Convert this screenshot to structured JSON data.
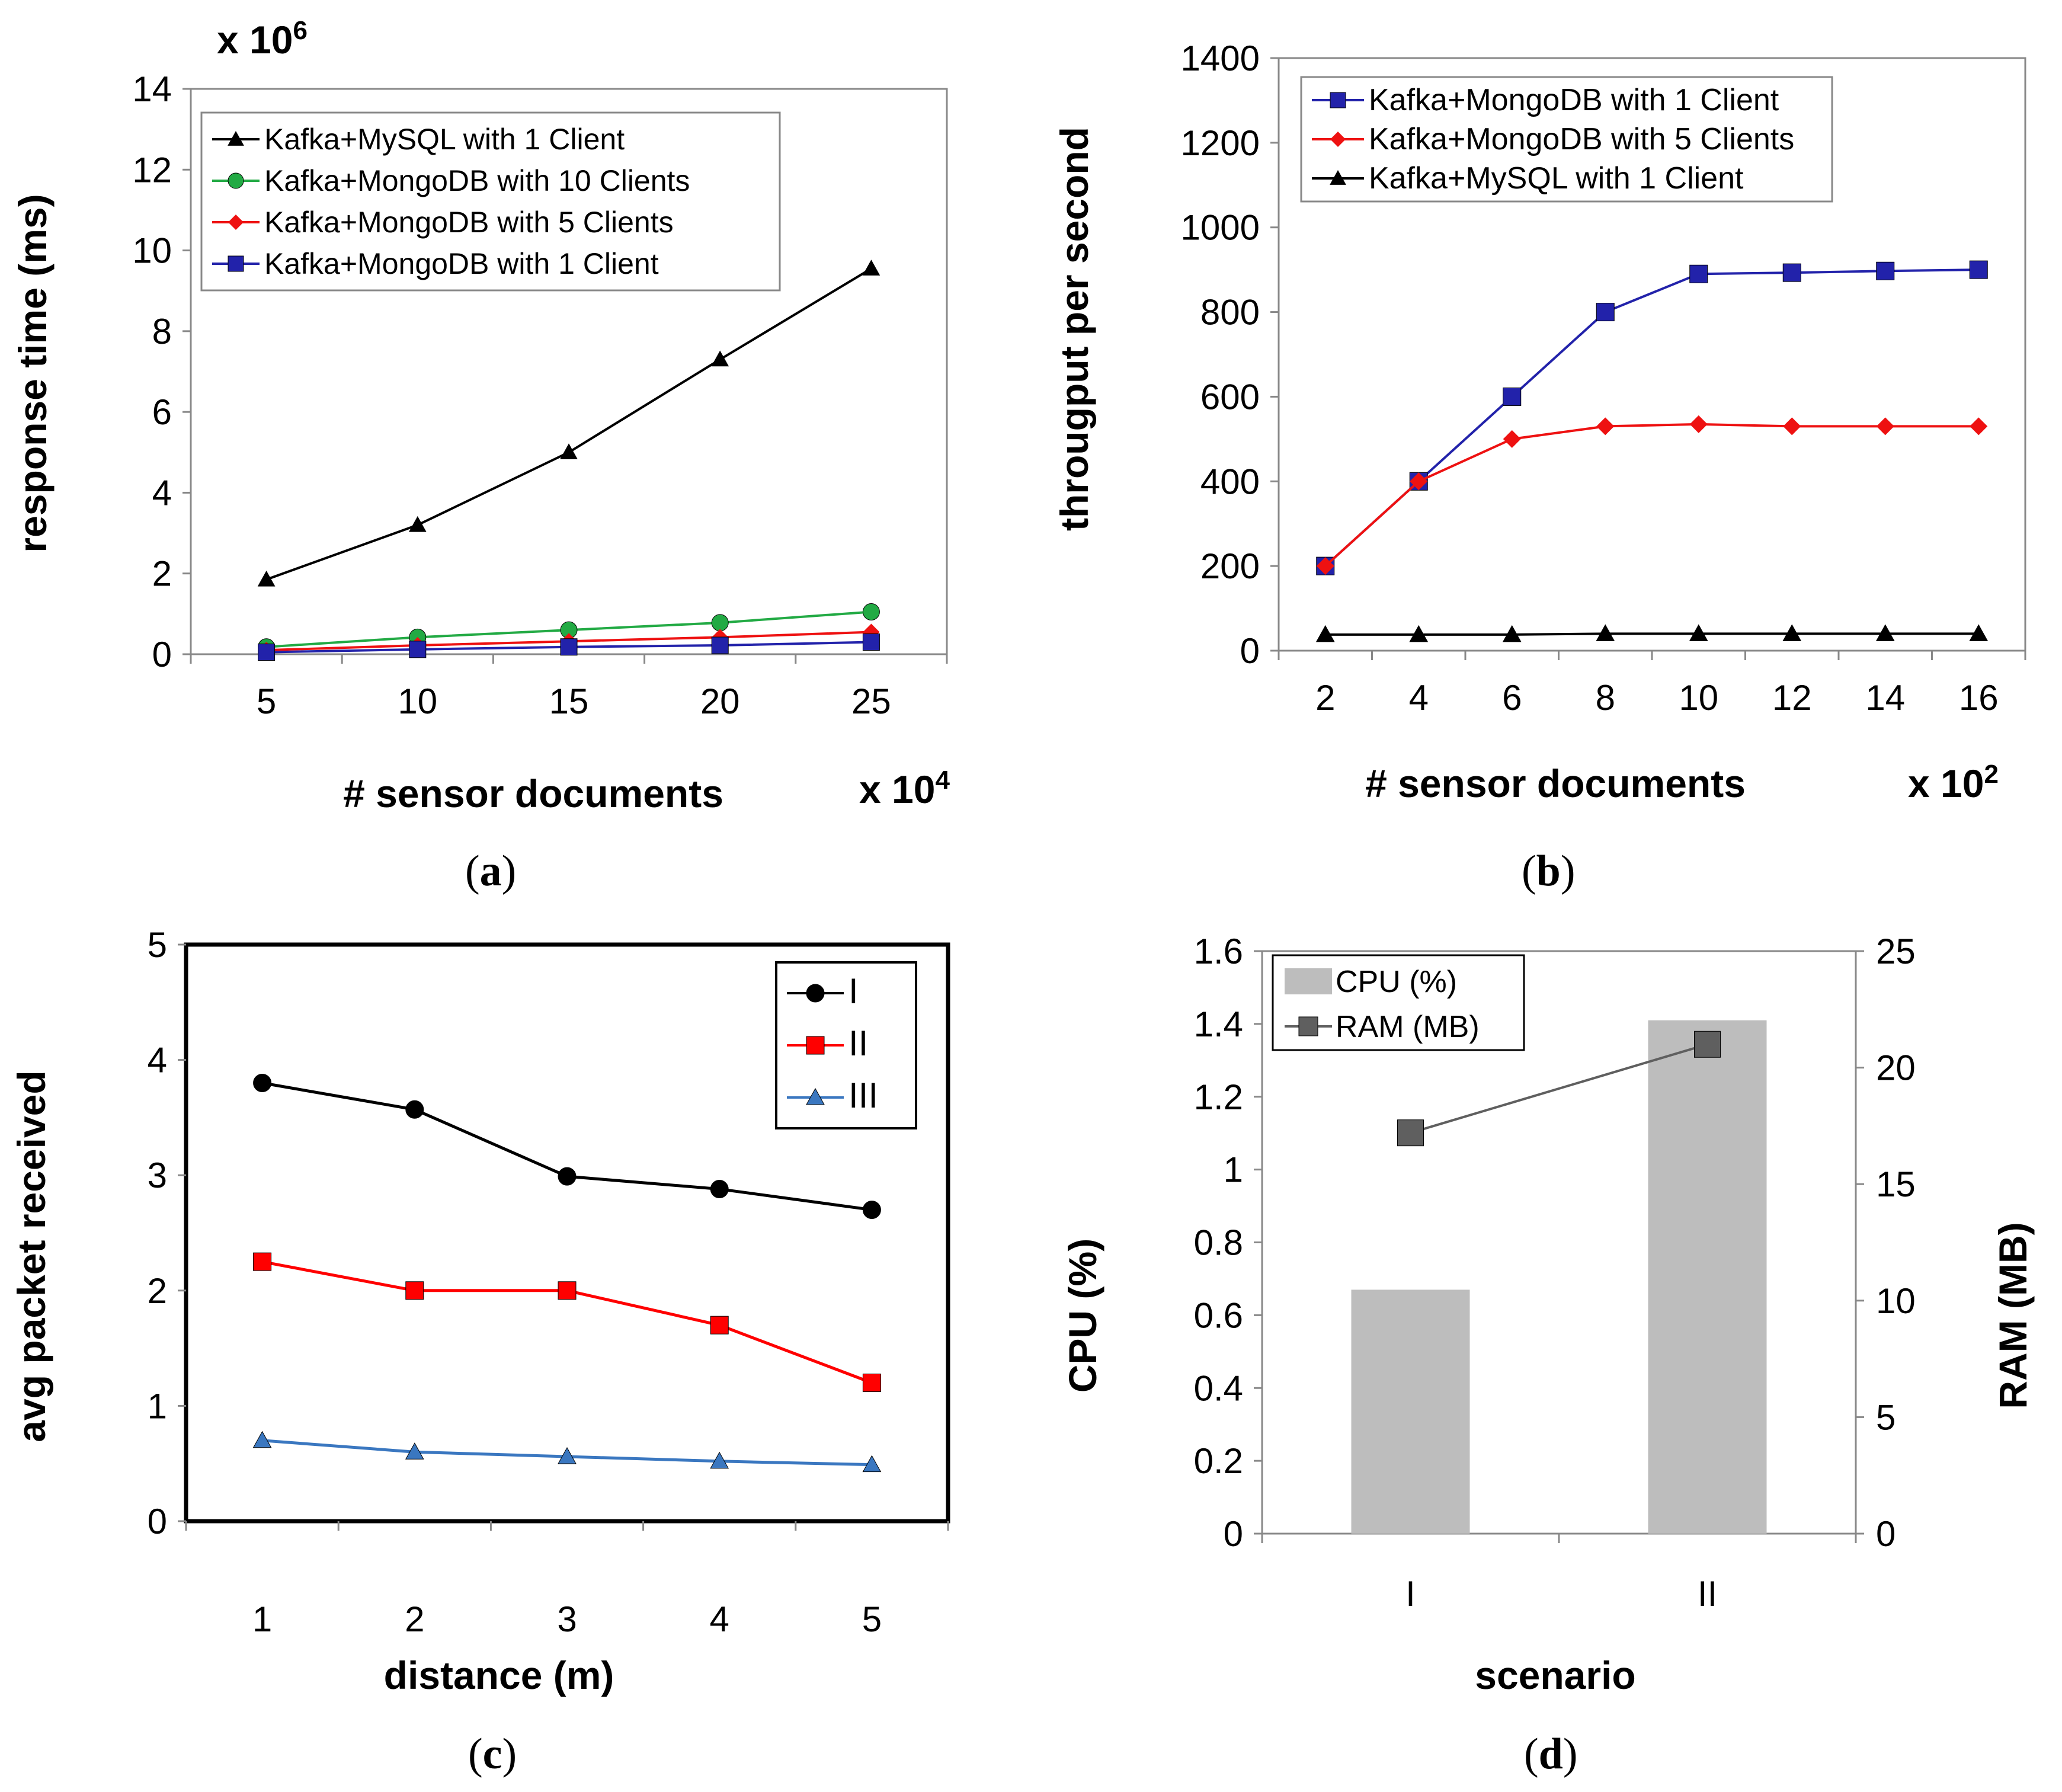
{
  "chart_data": [
    {
      "id": "a",
      "type": "line",
      "caption": "a",
      "xlabel": "# sensor documents",
      "ylabel": "response time (ms)",
      "x_multiplier": "x 10",
      "x_multiplier_exp": "4",
      "y_multiplier": "x 10",
      "y_multiplier_exp": "6",
      "x": [
        5,
        10,
        15,
        20,
        25
      ],
      "xlim": [
        2.5,
        27.5
      ],
      "ylim": [
        0,
        14
      ],
      "yticks": [
        0,
        2,
        4,
        6,
        8,
        10,
        12,
        14
      ],
      "legend_position": "top-left",
      "series": [
        {
          "name": "Kafka+MySQL with 1 Client",
          "values": [
            1.85,
            3.2,
            5.0,
            7.3,
            9.55
          ],
          "color": "#000000",
          "marker": "triangle"
        },
        {
          "name": "Kafka+MongoDB with 10 Clients",
          "values": [
            0.18,
            0.42,
            0.6,
            0.78,
            1.05
          ],
          "color": "#22aa44",
          "marker": "circle"
        },
        {
          "name": "Kafka+MongoDB with 5 Clients",
          "values": [
            0.1,
            0.22,
            0.32,
            0.42,
            0.55
          ],
          "color": "#ee1111",
          "marker": "diamond"
        },
        {
          "name": "Kafka+MongoDB with 1 Client",
          "values": [
            0.05,
            0.12,
            0.18,
            0.22,
            0.3
          ],
          "color": "#2222aa",
          "marker": "square"
        }
      ]
    },
    {
      "id": "b",
      "type": "line",
      "caption": "b",
      "xlabel": "# sensor documents",
      "ylabel": "througput per second",
      "x_multiplier": "x 10",
      "x_multiplier_exp": "2",
      "x": [
        2,
        4,
        6,
        8,
        10,
        12,
        14,
        16
      ],
      "xlim": [
        1,
        17
      ],
      "ylim": [
        0,
        1400
      ],
      "yticks": [
        0,
        200,
        400,
        600,
        800,
        1000,
        1200,
        1400
      ],
      "legend_position": "top-left",
      "series": [
        {
          "name": "Kafka+MongoDB with 1 Client",
          "values": [
            200,
            400,
            600,
            800,
            890,
            893,
            897,
            900
          ],
          "color": "#2222aa",
          "marker": "square"
        },
        {
          "name": "Kafka+MongoDB with 5 Clients",
          "values": [
            200,
            400,
            500,
            530,
            535,
            530,
            530,
            530
          ],
          "color": "#ee1111",
          "marker": "diamond"
        },
        {
          "name": "Kafka+MySQL with 1 Client",
          "values": [
            38,
            38,
            38,
            40,
            40,
            40,
            40,
            40
          ],
          "color": "#000000",
          "marker": "triangle"
        }
      ]
    },
    {
      "id": "c",
      "type": "line",
      "caption": "c",
      "xlabel": "distance (m)",
      "ylabel": "avg packet received",
      "x": [
        1,
        2,
        3,
        4,
        5
      ],
      "xlim": [
        0.5,
        5.5
      ],
      "ylim": [
        0,
        5
      ],
      "yticks": [
        0,
        1,
        2,
        3,
        4,
        5
      ],
      "legend_position": "top-right",
      "series": [
        {
          "name": "I",
          "values": [
            3.8,
            3.57,
            2.99,
            2.88,
            2.7
          ],
          "color": "#000000",
          "marker": "circle"
        },
        {
          "name": "II",
          "values": [
            2.25,
            2.0,
            2.0,
            1.7,
            1.2
          ],
          "color": "#ff0000",
          "marker": "square"
        },
        {
          "name": "III",
          "values": [
            0.7,
            0.6,
            0.56,
            0.52,
            0.49
          ],
          "color": "#3a77c0",
          "marker": "triangle"
        }
      ]
    },
    {
      "id": "d",
      "type": "bar",
      "caption": "d",
      "xlabel": "scenario",
      "ylabel": "CPU (%)",
      "y2label": "RAM (MB)",
      "categories": [
        "I",
        "II"
      ],
      "ylim": [
        0,
        1.6
      ],
      "yticks": [
        "0",
        "0.2",
        "0.4",
        "0.6",
        "0.8",
        "1",
        "1.2",
        "1.4",
        "1.6"
      ],
      "y2lim": [
        0,
        25
      ],
      "y2ticks": [
        0,
        5,
        10,
        15,
        20,
        25
      ],
      "legend_position": "top-left",
      "series": [
        {
          "name": "CPU (%)",
          "type": "bar",
          "values": [
            0.67,
            1.41
          ],
          "color": "#bdbdbd"
        },
        {
          "name": "RAM (MB)",
          "type": "line",
          "axis": "right",
          "values": [
            17.2,
            21.0
          ],
          "color": "#5f5f5f",
          "marker": "square"
        }
      ]
    }
  ]
}
